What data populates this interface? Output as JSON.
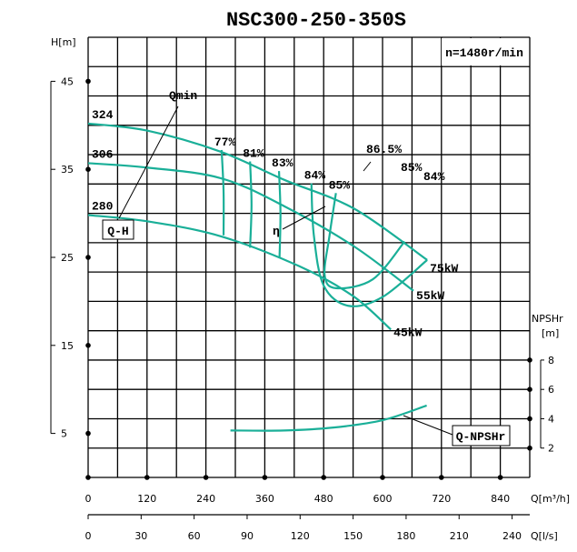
{
  "chart_data": {
    "type": "line",
    "title": "NSC300-250-350S",
    "speed_label": "n=1480r/min",
    "x_axis": {
      "label": "Q[m³/h]",
      "range": [
        0,
        900
      ],
      "ticks": [
        0,
        120,
        240,
        360,
        480,
        600,
        720,
        840
      ]
    },
    "x2_axis": {
      "label": "Q[l/s]",
      "ticks": [
        0,
        30,
        60,
        90,
        120,
        150,
        180,
        210,
        240
      ]
    },
    "y_axis": {
      "label": "H[m]",
      "range": [
        0,
        50
      ],
      "ticks": [
        5,
        15,
        25,
        35,
        45
      ]
    },
    "y2_axis": {
      "label_top": "NPSHr",
      "label_unit": "[m]",
      "range": [
        0,
        10
      ],
      "ticks": [
        2,
        4,
        6,
        8
      ]
    },
    "grid": true,
    "colors": {
      "curve": "#1aaf98",
      "grid": "#000000"
    },
    "qh_curves": [
      {
        "name": "324",
        "points": [
          [
            0,
            40.2
          ],
          [
            120,
            39.4
          ],
          [
            270,
            37.0
          ],
          [
            400,
            33.8
          ],
          [
            543,
            30.5
          ],
          [
            691,
            24.7
          ]
        ],
        "end_label": "75kW"
      },
      {
        "name": "306",
        "points": [
          [
            0,
            35.7
          ],
          [
            120,
            35.2
          ],
          [
            270,
            34.0
          ],
          [
            400,
            30.8
          ],
          [
            543,
            26.2
          ],
          [
            663,
            21.2
          ]
        ],
        "end_label": "55kW"
      },
      {
        "name": "280",
        "points": [
          [
            0,
            29.8
          ],
          [
            120,
            29.1
          ],
          [
            270,
            27.4
          ],
          [
            430,
            24.0
          ],
          [
            540,
            20.6
          ],
          [
            617,
            16.8
          ]
        ],
        "end_label": "45kW"
      }
    ],
    "efficiency_contours": [
      {
        "label": "77%",
        "points": [
          [
            272,
            37.2
          ],
          [
            276,
            32.5
          ],
          [
            276,
            27.5
          ]
        ]
      },
      {
        "label": "81%",
        "points": [
          [
            330,
            35.9
          ],
          [
            333,
            31.0
          ],
          [
            330,
            26.1
          ]
        ]
      },
      {
        "label": "83%",
        "points": [
          [
            389,
            34.8
          ],
          [
            392,
            30.0
          ],
          [
            390,
            24.9
          ]
        ]
      },
      {
        "label": "84%",
        "points": [
          [
            455,
            33.4
          ],
          [
            460,
            27.5
          ],
          [
            480,
            21.8
          ],
          [
            530,
            19.5
          ],
          [
            600,
            20.5
          ],
          [
            691,
            24.7
          ]
        ]
      },
      {
        "label": "85%",
        "points": [
          [
            505,
            32.3
          ],
          [
            492,
            27.5
          ],
          [
            482,
            23.0
          ],
          [
            505,
            21.5
          ],
          [
            580,
            22.5
          ],
          [
            645,
            26.8
          ]
        ]
      }
    ],
    "annotations": {
      "bep": "86.5%",
      "right_85": "85%",
      "right_84": "84%",
      "eta": "η",
      "qmin": "Qmin",
      "qh": "Q-H",
      "npsh": "Q-NPSHr"
    },
    "npshr_curve": {
      "name": "Q-NPSHr",
      "points": [
        [
          290,
          3.2
        ],
        [
          400,
          3.2
        ],
        [
          500,
          3.4
        ],
        [
          600,
          3.9
        ],
        [
          690,
          4.9
        ]
      ]
    }
  }
}
